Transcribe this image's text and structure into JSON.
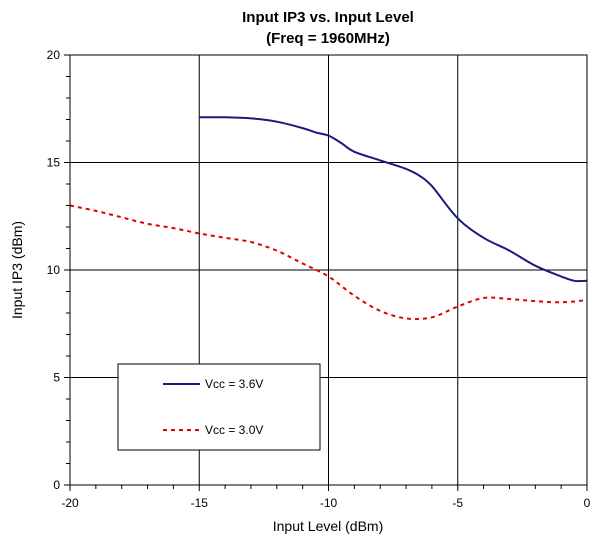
{
  "chart_data": {
    "type": "line",
    "title": "Input IP3 vs. Input Level",
    "subtitle": "(Freq = 1960MHz)",
    "xlabel": "Input Level (dBm)",
    "ylabel": "Input IP3 (dBm)",
    "xlim": [
      -20,
      0
    ],
    "ylim": [
      0,
      20
    ],
    "xticks": [
      -20,
      -15,
      -10,
      -5,
      0
    ],
    "yticks": [
      0,
      5,
      10,
      15,
      20
    ],
    "xtick_labels": [
      "-20",
      "-15",
      "-10",
      "-5",
      "0"
    ],
    "ytick_labels": [
      "0",
      "5",
      "10",
      "15",
      "20"
    ],
    "grid": true,
    "legend_position": "bottom-left",
    "series": [
      {
        "name": "Vcc = 3.6V",
        "color": "#1a1a80",
        "style": "solid",
        "x": [
          -15,
          -14,
          -13,
          -12,
          -11,
          -10.5,
          -10,
          -9.5,
          -9,
          -8,
          -7,
          -6.5,
          -6,
          -5,
          -4,
          -3,
          -2,
          -1,
          -0.5,
          0
        ],
        "y": [
          17.1,
          17.1,
          17.05,
          16.9,
          16.6,
          16.4,
          16.25,
          15.9,
          15.5,
          15.1,
          14.7,
          14.4,
          13.9,
          12.4,
          11.5,
          10.9,
          10.2,
          9.7,
          9.5,
          9.5
        ]
      },
      {
        "name": "Vcc = 3.0V",
        "color": "#e00000",
        "style": "dashed",
        "x": [
          -20,
          -19,
          -18,
          -17,
          -16,
          -15,
          -14,
          -13,
          -12,
          -11,
          -10,
          -9,
          -8,
          -7,
          -6,
          -5,
          -4,
          -3,
          -2,
          -1,
          0
        ],
        "y": [
          13.0,
          12.75,
          12.45,
          12.15,
          11.95,
          11.7,
          11.5,
          11.3,
          10.9,
          10.3,
          9.7,
          8.8,
          8.1,
          7.75,
          7.8,
          8.3,
          8.7,
          8.65,
          8.55,
          8.5,
          8.6
        ]
      }
    ]
  }
}
